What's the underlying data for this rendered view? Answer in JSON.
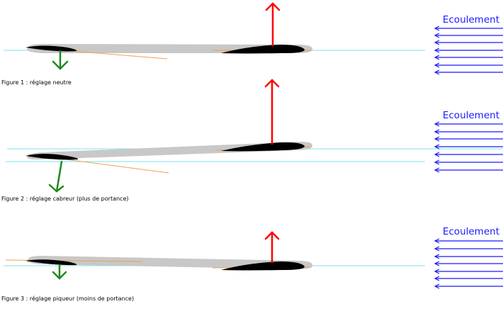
{
  "colors": {
    "flow": "#1a1aff",
    "lift_up": "#ff0000",
    "force_down": "#1e8a1e",
    "reference_line": "#7fe3f0",
    "chord_line": "#f0a050",
    "fuselage": "#c8c8c8",
    "wing": "#000000"
  },
  "figures": [
    {
      "caption": "Figure 1 : réglage neutre",
      "flow_label": "Ecoulement",
      "setting": "neutre"
    },
    {
      "caption": "Figure 2 : réglage cabreur (plus de portance)",
      "flow_label": "Ecoulement",
      "setting": "cabreur"
    },
    {
      "caption": "Figure 3 : réglage piqueur (moins de portance)",
      "flow_label": "Ecoulement",
      "setting": "piqueur"
    }
  ],
  "icons": {
    "flow_arrow": "arrow-left-icon",
    "lift_arrow": "arrow-up-icon",
    "tail_force_arrow": "arrow-down-icon"
  }
}
